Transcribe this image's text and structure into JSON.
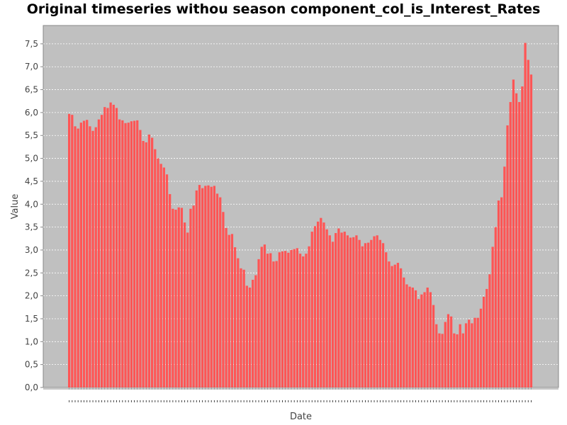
{
  "chart_data": {
    "type": "bar",
    "title": "Original timeseries withou season component_col_is_Interest_Rates",
    "xlabel": "Date",
    "ylabel": "Value",
    "ylim": [
      0,
      7.9
    ],
    "yticks": [
      "0,0",
      "0,5",
      "1,0",
      "1,5",
      "2,0",
      "2,5",
      "3,0",
      "3,5",
      "4,0",
      "4,5",
      "5,0",
      "5,5",
      "6,0",
      "6,5",
      "7,0",
      "7,5"
    ],
    "grid": true,
    "legend": "none",
    "colors": {
      "plot_bg": "#c0c0c0",
      "bar": "#ff5555",
      "grid": "#ffffff",
      "axis": "#888888"
    },
    "series": [
      {
        "values": [
          5.97,
          5.95,
          5.7,
          5.65,
          5.78,
          5.82,
          5.84,
          5.7,
          5.6,
          5.68,
          5.85,
          5.95,
          6.12,
          6.1,
          6.22,
          6.17,
          6.1,
          5.85,
          5.83,
          5.77,
          5.78,
          5.81,
          5.82,
          5.83,
          5.62,
          5.38,
          5.35,
          5.52,
          5.45,
          5.2,
          5.0,
          4.88,
          4.8,
          4.65,
          4.22,
          3.9,
          3.88,
          3.93,
          3.92,
          3.6,
          3.38,
          3.9,
          3.97,
          4.3,
          4.42,
          4.35,
          4.4,
          4.41,
          4.38,
          4.4,
          4.23,
          4.15,
          3.83,
          3.48,
          3.33,
          3.35,
          3.06,
          2.82,
          2.6,
          2.57,
          2.22,
          2.18,
          2.35,
          2.45,
          2.8,
          3.07,
          3.12,
          2.92,
          2.93,
          2.75,
          2.76,
          2.95,
          2.97,
          2.98,
          2.94,
          3.0,
          3.02,
          3.04,
          2.92,
          2.86,
          2.92,
          3.08,
          3.4,
          3.52,
          3.62,
          3.7,
          3.6,
          3.45,
          3.32,
          3.18,
          3.37,
          3.47,
          3.38,
          3.4,
          3.32,
          3.27,
          3.28,
          3.32,
          3.22,
          3.08,
          3.15,
          3.16,
          3.22,
          3.3,
          3.32,
          3.22,
          3.15,
          2.95,
          2.75,
          2.65,
          2.68,
          2.72,
          2.6,
          2.4,
          2.25,
          2.2,
          2.18,
          2.12,
          1.93,
          2.03,
          2.08,
          2.18,
          2.08,
          1.8,
          1.38,
          1.18,
          1.17,
          1.43,
          1.6,
          1.55,
          1.18,
          1.16,
          1.38,
          1.18,
          1.4,
          1.48,
          1.4,
          1.52,
          1.52,
          1.72,
          1.98,
          2.15,
          2.47,
          3.07,
          3.5,
          4.08,
          4.15,
          4.82,
          5.72,
          6.23,
          6.72,
          6.42,
          6.23,
          6.57,
          7.52,
          7.15,
          6.83
        ]
      }
    ]
  }
}
